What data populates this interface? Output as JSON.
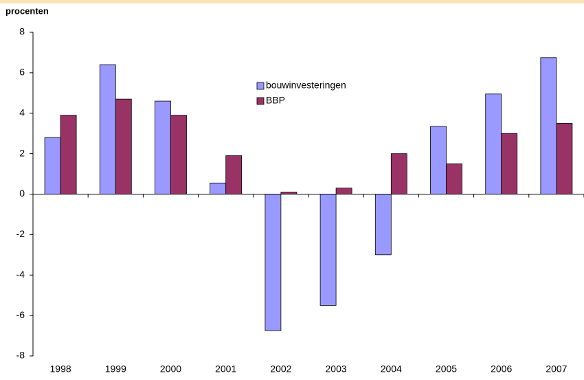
{
  "chart_data": {
    "type": "bar",
    "title": "procenten",
    "categories": [
      "1998",
      "1999",
      "2000",
      "2001",
      "2002",
      "2003",
      "2004",
      "2005",
      "2006",
      "2007"
    ],
    "series": [
      {
        "name": "bouwinvesteringen",
        "color": "#9999ff",
        "values": [
          2.8,
          6.4,
          4.6,
          0.55,
          -6.75,
          -5.5,
          -3.0,
          3.35,
          4.95,
          6.75
        ]
      },
      {
        "name": "BBP",
        "color": "#993366",
        "values": [
          3.9,
          4.7,
          3.9,
          1.9,
          0.1,
          0.3,
          2.0,
          1.5,
          3.0,
          3.5
        ]
      }
    ],
    "ylim": [
      -8,
      8
    ],
    "yticks": [
      -8,
      -6,
      -4,
      -2,
      0,
      2,
      4,
      6,
      8
    ],
    "grid": false,
    "legend": "top"
  }
}
